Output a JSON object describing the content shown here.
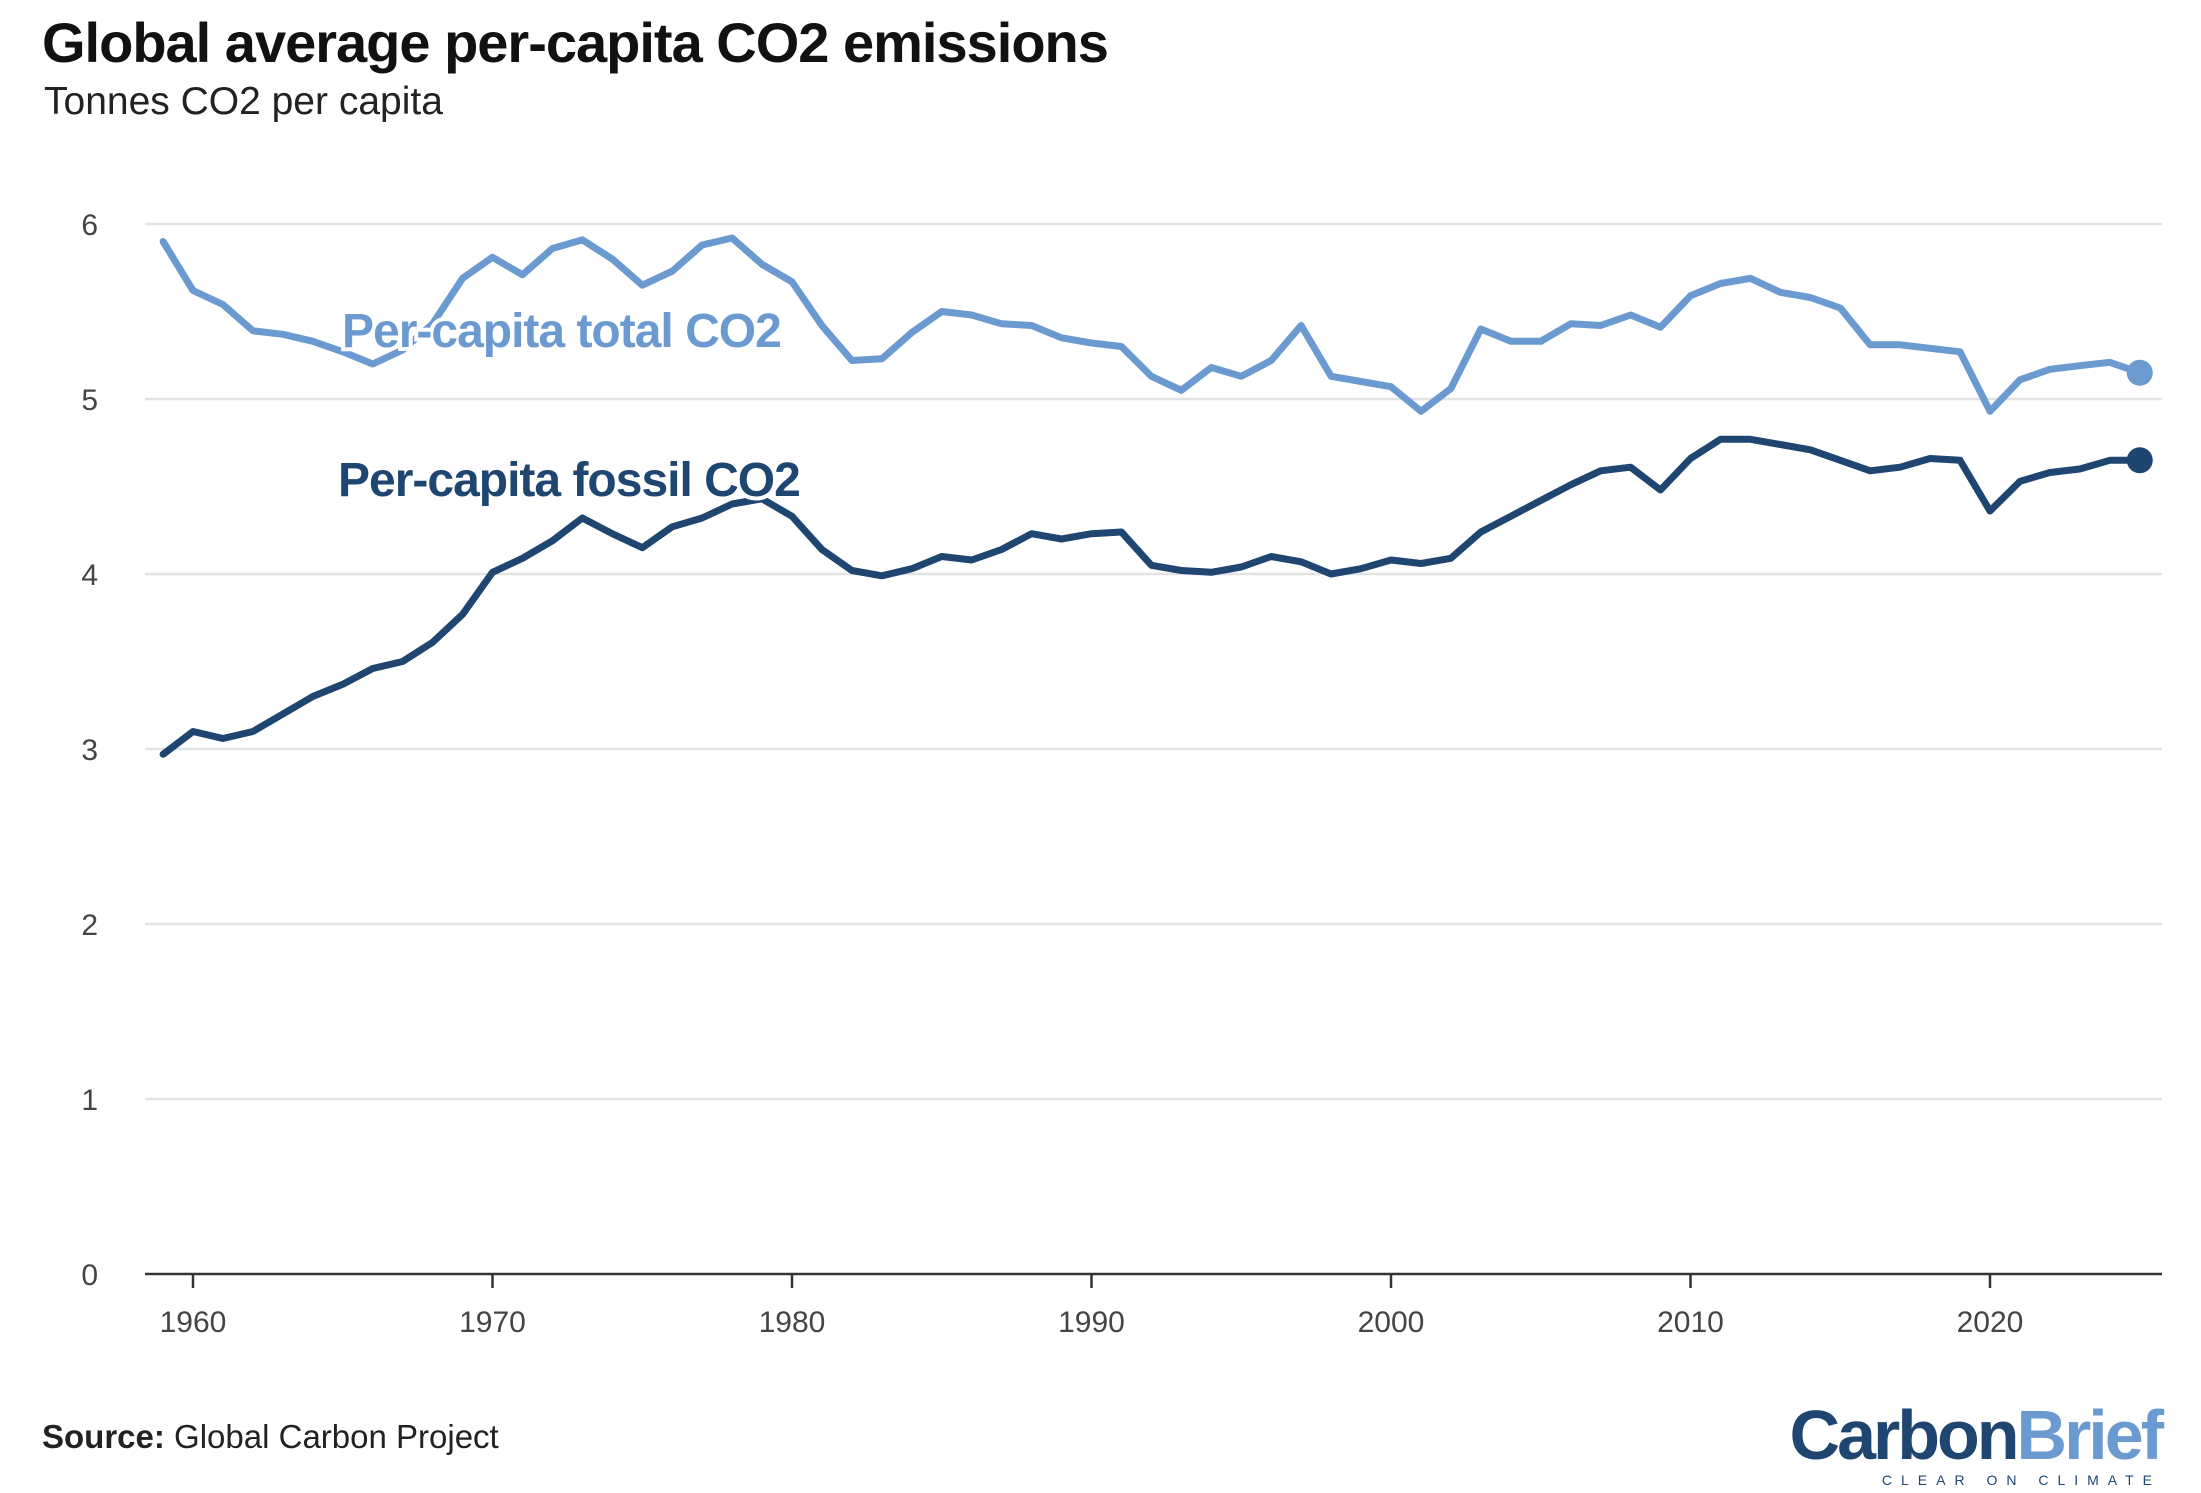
{
  "chart_data": {
    "type": "line",
    "title": "Global average per-capita CO2 emissions",
    "subtitle": "Tonnes CO2 per capita",
    "xlabel": "",
    "ylabel": "",
    "xlim": [
      1959,
      2025
    ],
    "ylim": [
      0,
      6
    ],
    "x_ticks": [
      1960,
      1970,
      1980,
      1990,
      2000,
      2010,
      2020
    ],
    "y_ticks": [
      0,
      1,
      2,
      3,
      4,
      5,
      6
    ],
    "grid": "horizontal",
    "legend": "inline labels",
    "x": [
      1959,
      1960,
      1961,
      1962,
      1963,
      1964,
      1965,
      1966,
      1967,
      1968,
      1969,
      1970,
      1971,
      1972,
      1973,
      1974,
      1975,
      1976,
      1977,
      1978,
      1979,
      1980,
      1981,
      1982,
      1983,
      1984,
      1985,
      1986,
      1987,
      1988,
      1989,
      1990,
      1991,
      1992,
      1993,
      1994,
      1995,
      1996,
      1997,
      1998,
      1999,
      2000,
      2001,
      2002,
      2003,
      2004,
      2005,
      2006,
      2007,
      2008,
      2009,
      2010,
      2011,
      2012,
      2013,
      2014,
      2015,
      2016,
      2017,
      2018,
      2019,
      2020,
      2021,
      2022,
      2023,
      2024,
      2025
    ],
    "series": [
      {
        "name": "Per-capita total CO2",
        "color": "#6b9ad0",
        "values": [
          5.9,
          5.62,
          5.54,
          5.39,
          5.37,
          5.33,
          5.27,
          5.2,
          5.28,
          5.43,
          5.69,
          5.81,
          5.71,
          5.86,
          5.91,
          5.8,
          5.65,
          5.73,
          5.88,
          5.92,
          5.77,
          5.67,
          5.42,
          5.22,
          5.23,
          5.38,
          5.5,
          5.48,
          5.43,
          5.42,
          5.35,
          5.32,
          5.3,
          5.13,
          5.05,
          5.18,
          5.13,
          5.22,
          5.42,
          5.13,
          5.1,
          5.07,
          4.93,
          5.06,
          5.4,
          5.33,
          5.33,
          5.43,
          5.42,
          5.48,
          5.41,
          5.59,
          5.66,
          5.69,
          5.61,
          5.58,
          5.52,
          5.31,
          5.31,
          5.29,
          5.27,
          4.93,
          5.11,
          5.17,
          5.19,
          5.21,
          5.15
        ]
      },
      {
        "name": "Per-capita fossil CO2",
        "color": "#1f4571",
        "values": [
          2.97,
          3.1,
          3.06,
          3.1,
          3.2,
          3.3,
          3.37,
          3.46,
          3.5,
          3.61,
          3.77,
          4.01,
          4.09,
          4.19,
          4.32,
          4.23,
          4.15,
          4.27,
          4.32,
          4.4,
          4.43,
          4.33,
          4.14,
          4.02,
          3.99,
          4.03,
          4.1,
          4.08,
          4.14,
          4.23,
          4.2,
          4.23,
          4.24,
          4.05,
          4.02,
          4.01,
          4.04,
          4.1,
          4.07,
          4.0,
          4.03,
          4.08,
          4.06,
          4.09,
          4.24,
          4.33,
          4.42,
          4.51,
          4.59,
          4.61,
          4.48,
          4.66,
          4.77,
          4.77,
          4.74,
          4.71,
          4.65,
          4.59,
          4.61,
          4.66,
          4.65,
          4.36,
          4.53,
          4.58,
          4.6,
          4.65,
          4.65
        ]
      }
    ]
  },
  "footer": {
    "source_label": "Source:",
    "source_text": "Global Carbon Project"
  },
  "logo": {
    "part1": "Carbon",
    "part2": "Brief",
    "tagline": "CLEAR ON CLIMATE"
  }
}
